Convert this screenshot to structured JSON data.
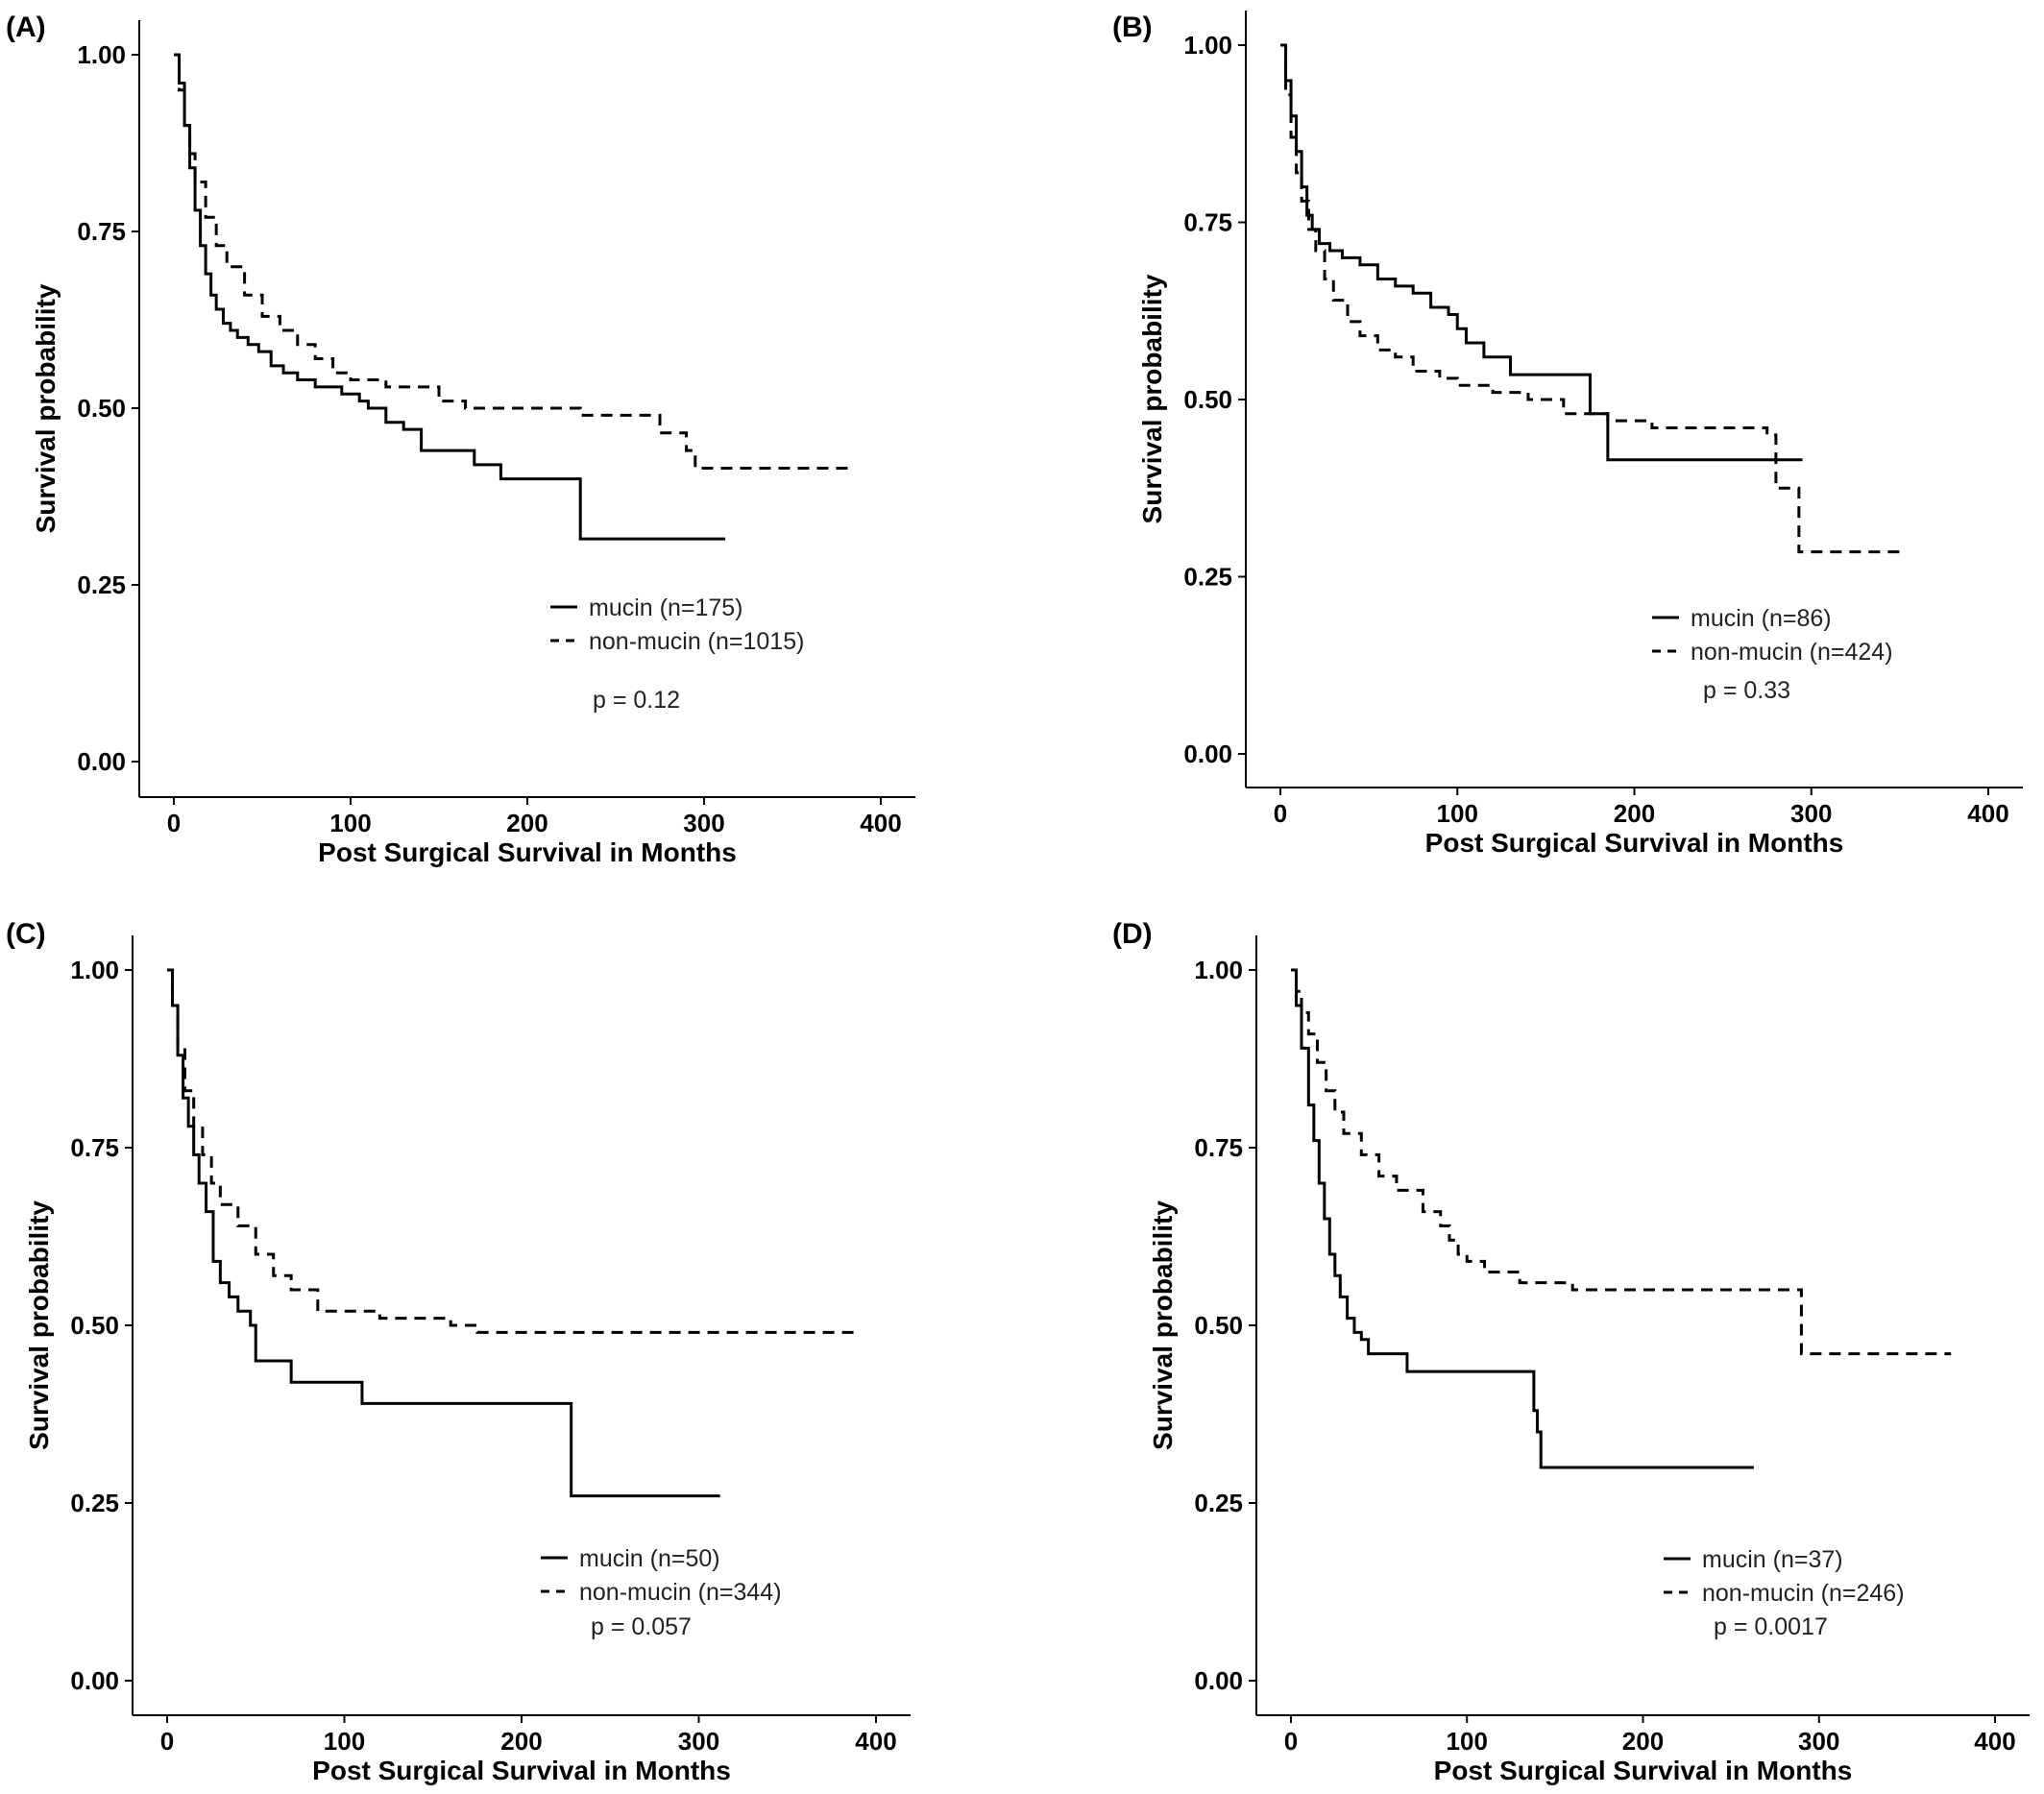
{
  "chart_data": [
    {
      "type": "line",
      "panel_label": "(A)",
      "xlabel": "Post Surgical Survival in Months",
      "ylabel": "Survival probability",
      "xlim": [
        -20,
        420
      ],
      "ylim": [
        -0.05,
        1.05
      ],
      "xticks": [
        "0",
        "100",
        "200",
        "300",
        "400"
      ],
      "yticks": [
        "0.00",
        "0.25",
        "0.50",
        "0.75",
        "1.00"
      ],
      "grid": false,
      "legend_position": "bottom-right",
      "p_value_label": "p = 0.12",
      "series": [
        {
          "name": "mucin (n=175)",
          "style": "solid",
          "x": [
            0,
            3,
            6,
            9,
            12,
            15,
            18,
            21,
            24,
            28,
            32,
            36,
            42,
            48,
            55,
            62,
            70,
            80,
            95,
            105,
            110,
            120,
            130,
            140,
            170,
            185,
            228,
            230,
            312
          ],
          "y": [
            1.0,
            0.96,
            0.9,
            0.84,
            0.78,
            0.73,
            0.69,
            0.66,
            0.64,
            0.62,
            0.61,
            0.6,
            0.59,
            0.58,
            0.56,
            0.55,
            0.54,
            0.53,
            0.52,
            0.51,
            0.5,
            0.48,
            0.47,
            0.44,
            0.42,
            0.4,
            0.4,
            0.315,
            0.315
          ]
        },
        {
          "name": "non-mucin (n=1015)",
          "style": "dashed",
          "x": [
            0,
            3,
            6,
            9,
            12,
            18,
            24,
            30,
            40,
            50,
            60,
            70,
            80,
            90,
            100,
            120,
            150,
            165,
            200,
            230,
            270,
            275,
            290,
            295,
            385
          ],
          "y": [
            1.0,
            0.95,
            0.9,
            0.86,
            0.82,
            0.77,
            0.73,
            0.7,
            0.66,
            0.63,
            0.61,
            0.59,
            0.57,
            0.55,
            0.54,
            0.53,
            0.51,
            0.5,
            0.5,
            0.49,
            0.49,
            0.465,
            0.44,
            0.415,
            0.415
          ]
        }
      ]
    },
    {
      "type": "line",
      "panel_label": "(B)",
      "xlabel": "Post Surgical Survival in Months",
      "ylabel": "Survival probability",
      "xlim": [
        -20,
        420
      ],
      "ylim": [
        -0.05,
        1.05
      ],
      "xticks": [
        "0",
        "100",
        "200",
        "300",
        "400"
      ],
      "yticks": [
        "0.00",
        "0.25",
        "0.50",
        "0.75",
        "1.00"
      ],
      "grid": false,
      "legend_position": "bottom-right",
      "p_value_label": "p = 0.33",
      "series": [
        {
          "name": "mucin (n=86)",
          "style": "solid",
          "x": [
            0,
            3,
            6,
            9,
            12,
            15,
            18,
            22,
            28,
            35,
            45,
            55,
            65,
            75,
            85,
            95,
            100,
            105,
            115,
            130,
            175,
            185,
            295
          ],
          "y": [
            1.0,
            0.95,
            0.9,
            0.85,
            0.8,
            0.76,
            0.74,
            0.72,
            0.71,
            0.7,
            0.69,
            0.67,
            0.66,
            0.65,
            0.63,
            0.62,
            0.6,
            0.58,
            0.56,
            0.535,
            0.48,
            0.415,
            0.415
          ]
        },
        {
          "name": "non-mucin (n=424)",
          "style": "dashed",
          "x": [
            0,
            3,
            6,
            9,
            12,
            16,
            20,
            25,
            30,
            38,
            45,
            55,
            65,
            75,
            90,
            100,
            120,
            140,
            160,
            185,
            210,
            275,
            280,
            293,
            350
          ],
          "y": [
            1.0,
            0.93,
            0.87,
            0.82,
            0.78,
            0.74,
            0.71,
            0.67,
            0.64,
            0.61,
            0.59,
            0.57,
            0.56,
            0.54,
            0.53,
            0.52,
            0.51,
            0.5,
            0.48,
            0.47,
            0.46,
            0.45,
            0.375,
            0.285,
            0.285
          ]
        }
      ]
    },
    {
      "type": "line",
      "panel_label": "(C)",
      "xlabel": "Post Surgical Survival in Months",
      "ylabel": "Survival probability",
      "xlim": [
        -20,
        420
      ],
      "ylim": [
        -0.05,
        1.05
      ],
      "xticks": [
        "0",
        "100",
        "200",
        "300",
        "400"
      ],
      "yticks": [
        "0.00",
        "0.25",
        "0.50",
        "0.75",
        "1.00"
      ],
      "grid": false,
      "legend_position": "bottom-right",
      "p_value_label": "p = 0.057",
      "series": [
        {
          "name": "mucin (n=50)",
          "style": "solid",
          "x": [
            0,
            3,
            6,
            9,
            12,
            15,
            18,
            22,
            26,
            30,
            35,
            40,
            47,
            50,
            70,
            110,
            140,
            226,
            228,
            312
          ],
          "y": [
            1.0,
            0.95,
            0.88,
            0.82,
            0.78,
            0.74,
            0.7,
            0.66,
            0.59,
            0.56,
            0.54,
            0.52,
            0.5,
            0.45,
            0.42,
            0.39,
            0.39,
            0.39,
            0.26,
            0.26
          ]
        },
        {
          "name": "non-mucin (n=344)",
          "style": "dashed",
          "x": [
            0,
            3,
            6,
            10,
            15,
            20,
            25,
            30,
            40,
            50,
            60,
            70,
            85,
            100,
            120,
            160,
            175,
            390
          ],
          "y": [
            1.0,
            0.95,
            0.89,
            0.83,
            0.78,
            0.74,
            0.7,
            0.67,
            0.64,
            0.6,
            0.57,
            0.55,
            0.52,
            0.52,
            0.51,
            0.5,
            0.49,
            0.49
          ]
        }
      ]
    },
    {
      "type": "line",
      "panel_label": "(D)",
      "xlabel": "Post Surgical Survival in Months",
      "ylabel": "Survival probability",
      "xlim": [
        -20,
        420
      ],
      "ylim": [
        -0.05,
        1.05
      ],
      "xticks": [
        "0",
        "100",
        "200",
        "300",
        "400"
      ],
      "yticks": [
        "0.00",
        "0.25",
        "0.50",
        "0.75",
        "1.00"
      ],
      "grid": false,
      "legend_position": "bottom-right",
      "p_value_label": "p = 0.0017",
      "series": [
        {
          "name": "mucin (n=37)",
          "style": "solid",
          "x": [
            0,
            3,
            6,
            10,
            13,
            16,
            19,
            22,
            25,
            28,
            32,
            36,
            40,
            44,
            66,
            100,
            135,
            138,
            140,
            142,
            263
          ],
          "y": [
            1.0,
            0.95,
            0.89,
            0.81,
            0.76,
            0.7,
            0.65,
            0.6,
            0.57,
            0.54,
            0.51,
            0.49,
            0.48,
            0.46,
            0.435,
            0.435,
            0.435,
            0.38,
            0.35,
            0.3,
            0.3
          ]
        },
        {
          "name": "non-mucin (n=246)",
          "style": "dashed",
          "x": [
            0,
            3,
            6,
            10,
            15,
            20,
            25,
            30,
            40,
            50,
            60,
            75,
            85,
            90,
            95,
            100,
            110,
            130,
            160,
            200,
            288,
            290,
            375
          ],
          "y": [
            1.0,
            0.97,
            0.94,
            0.91,
            0.87,
            0.83,
            0.8,
            0.77,
            0.74,
            0.71,
            0.69,
            0.66,
            0.64,
            0.62,
            0.6,
            0.59,
            0.575,
            0.56,
            0.55,
            0.55,
            0.55,
            0.46,
            0.46
          ]
        }
      ]
    }
  ]
}
